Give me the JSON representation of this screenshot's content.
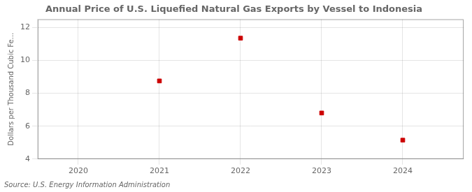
{
  "chart_data": {
    "type": "scatter",
    "title": "Annual Price of U.S. Liquefied Natural Gas Exports by Vessel to Indonesia",
    "ylabel": "Dollars per Thousand Cubic Fe...",
    "source": "Source: U.S. Energy Information Administration",
    "x": [
      2021,
      2022,
      2023,
      2024
    ],
    "values": [
      8.75,
      11.35,
      6.8,
      5.15
    ],
    "color": "#cc0000",
    "marker": "square",
    "xlim": [
      2019.5,
      2024.75
    ],
    "ylim": [
      4,
      12.5
    ],
    "xticks": [
      2020,
      2021,
      2022,
      2023,
      2024
    ],
    "yticks": [
      4,
      6,
      8,
      10,
      12
    ],
    "grid": true
  }
}
